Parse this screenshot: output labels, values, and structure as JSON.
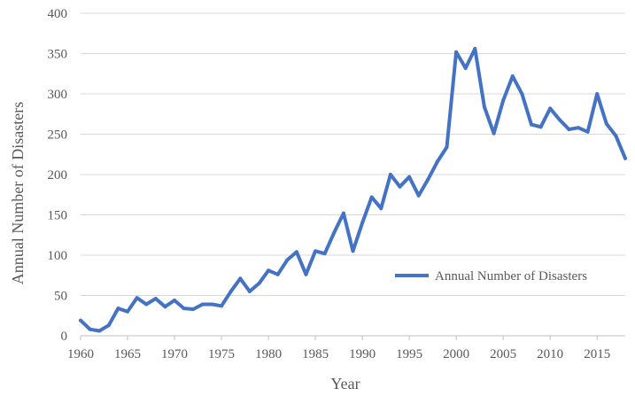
{
  "chart_data": {
    "type": "line",
    "title": "",
    "xlabel": "Year",
    "ylabel": "Annual Number of Disasters",
    "xlim": [
      1960,
      2018
    ],
    "ylim": [
      0,
      400
    ],
    "x_ticks": [
      1960,
      1965,
      1970,
      1975,
      1980,
      1985,
      1990,
      1995,
      2000,
      2005,
      2010,
      2015
    ],
    "y_ticks": [
      0,
      50,
      100,
      150,
      200,
      250,
      300,
      350,
      400
    ],
    "grid": "horizontal",
    "legend": {
      "placement": "lower-right"
    },
    "colors": {
      "series": "#4472c4",
      "grid": "#d9d9d9",
      "text": "#595959"
    },
    "series": [
      {
        "name": "Annual Number of Disasters",
        "x": [
          1960,
          1961,
          1962,
          1963,
          1964,
          1965,
          1966,
          1967,
          1968,
          1969,
          1970,
          1971,
          1972,
          1973,
          1974,
          1975,
          1976,
          1977,
          1978,
          1979,
          1980,
          1981,
          1982,
          1983,
          1984,
          1985,
          1986,
          1987,
          1988,
          1989,
          1990,
          1991,
          1992,
          1993,
          1994,
          1995,
          1996,
          1997,
          1998,
          1999,
          2000,
          2001,
          2002,
          2003,
          2004,
          2005,
          2006,
          2007,
          2008,
          2009,
          2010,
          2011,
          2012,
          2013,
          2014,
          2015,
          2016,
          2017,
          2018
        ],
        "values": [
          19,
          8,
          6,
          13,
          34,
          30,
          47,
          39,
          46,
          36,
          44,
          34,
          33,
          39,
          39,
          37,
          55,
          71,
          55,
          65,
          81,
          76,
          94,
          104,
          76,
          105,
          102,
          128,
          152,
          105,
          140,
          172,
          158,
          200,
          185,
          197,
          174,
          194,
          216,
          234,
          352,
          332,
          356,
          284,
          251,
          292,
          322,
          300,
          262,
          259,
          282,
          268,
          256,
          258,
          253,
          300,
          263,
          248,
          220
        ]
      }
    ]
  }
}
